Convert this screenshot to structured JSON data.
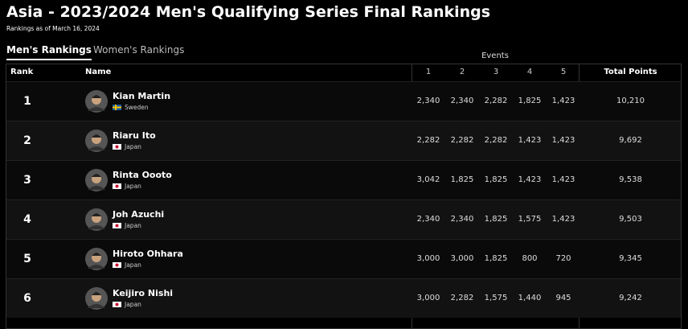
{
  "header": {
    "title": "Asia - 2023/2024 Men's Qualifying Series Final Rankings",
    "subtitle": "Rankings as of March 16, 2024"
  },
  "tabs": [
    "Men's Rankings",
    "Women's Rankings"
  ],
  "table": {
    "group_label": "Events",
    "columns": [
      "Rank",
      "Name",
      "1",
      "2",
      "3",
      "4",
      "5",
      "Total Points"
    ],
    "rows": [
      {
        "rank": "1",
        "name": "Kian Martin",
        "country": "Sweden",
        "events": [
          "2,340",
          "2,340",
          "2,282",
          "1,825",
          "1,423"
        ],
        "total": "10,210"
      },
      {
        "rank": "2",
        "name": "Riaru Ito",
        "country": "Japan",
        "events": [
          "2,282",
          "2,282",
          "2,282",
          "1,423",
          "1,423"
        ],
        "total": "9,692"
      },
      {
        "rank": "3",
        "name": "Rinta Oooto",
        "country": "Japan",
        "events": [
          "3,042",
          "1,825",
          "1,825",
          "1,423",
          "1,423"
        ],
        "total": "9,538"
      },
      {
        "rank": "4",
        "name": "Joh Azuchi",
        "country": "Japan",
        "events": [
          "2,340",
          "2,340",
          "1,825",
          "1,575",
          "1,423"
        ],
        "total": "9,503"
      },
      {
        "rank": "5",
        "name": "Hiroto Ohhara",
        "country": "Japan",
        "events": [
          "3,000",
          "3,000",
          "1,825",
          "800",
          "720"
        ],
        "total": "9,345"
      },
      {
        "rank": "6",
        "name": "Keijiro Nishi",
        "country": "Japan",
        "events": [
          "3,000",
          "2,282",
          "1,575",
          "1,440",
          "945"
        ],
        "total": "9,242"
      }
    ]
  }
}
